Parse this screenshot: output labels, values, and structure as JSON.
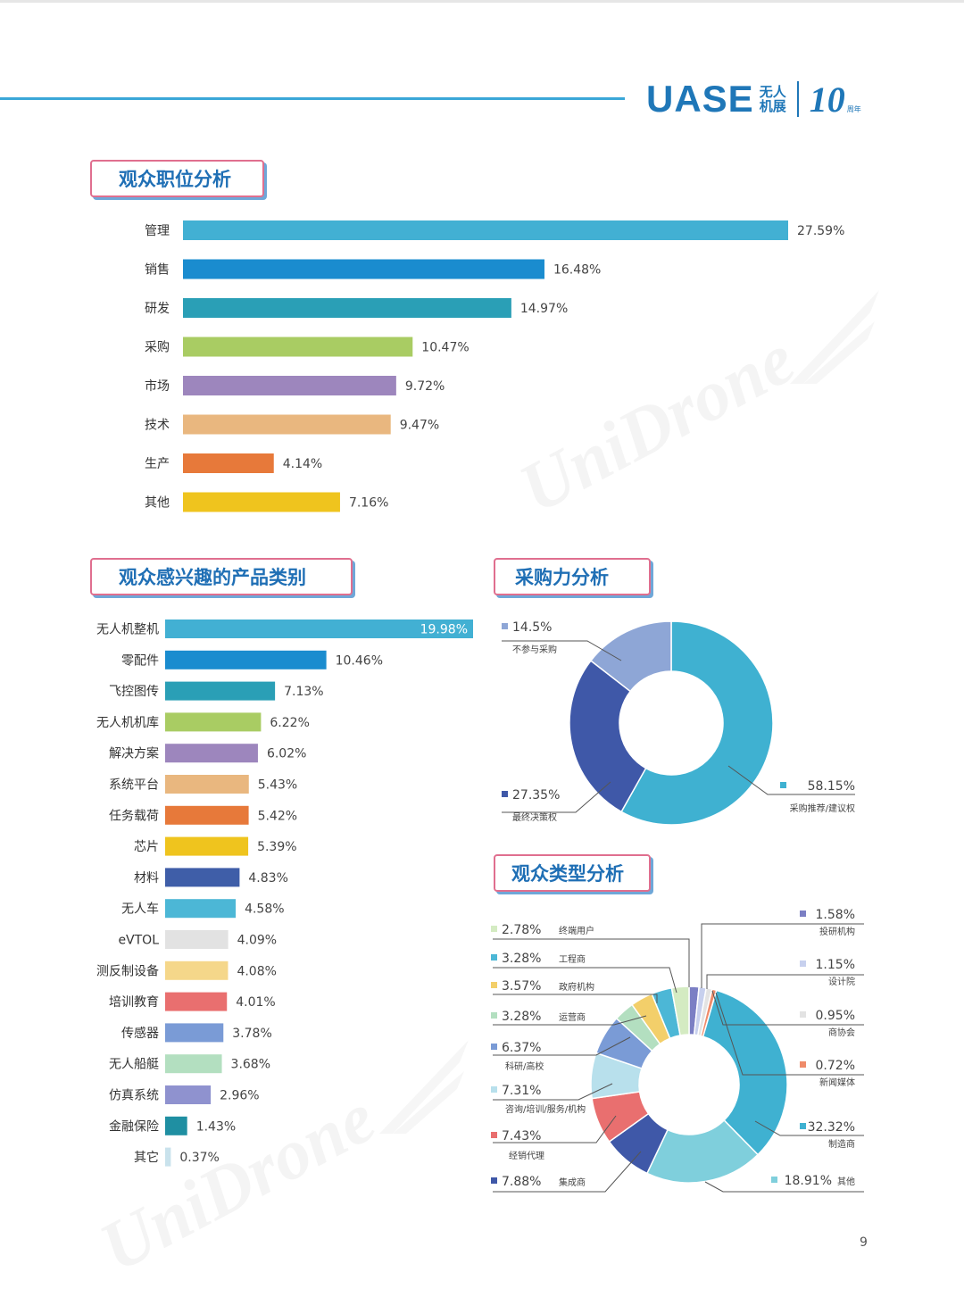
{
  "header": {
    "logo_text": "UASE",
    "logo_cn_top": "无人",
    "logo_cn_bottom": "机展",
    "anniversary": "10",
    "anniversary_small": "周年"
  },
  "sections": {
    "position": "观众职位分析",
    "product": "观众感兴趣的产品类别",
    "purchase": "采购力分析",
    "visitor_type": "观众类型分析"
  },
  "watermark": "UniDrone",
  "page_number": "9",
  "chart_data": [
    {
      "id": "position",
      "type": "bar",
      "orientation": "horizontal",
      "categories": [
        "管理",
        "销售",
        "研发",
        "采购",
        "市场",
        "技术",
        "生产",
        "其他"
      ],
      "values": [
        27.59,
        16.48,
        14.97,
        10.47,
        9.72,
        9.47,
        4.14,
        7.16
      ],
      "value_labels": [
        "27.59%",
        "16.48%",
        "14.97%",
        "10.47%",
        "9.72%",
        "9.47%",
        "4.14%",
        "7.16%"
      ],
      "colors": [
        "#42b0d3",
        "#1a8ccf",
        "#2a9fb6",
        "#a9cc63",
        "#9d86bd",
        "#e9b77f",
        "#e7793a",
        "#efc41e"
      ],
      "xlim": [
        0,
        27.59
      ]
    },
    {
      "id": "product",
      "type": "bar",
      "orientation": "horizontal",
      "categories": [
        "无人机整机",
        "零配件",
        "飞控图传",
        "无人机机库",
        "解决方案",
        "系统平台",
        "任务载荷",
        "芯片",
        "材料",
        "无人车",
        "eVTOL",
        "测反制设备",
        "培训教育",
        "传感器",
        "无人船艇",
        "仿真系统",
        "金融保险",
        "其它"
      ],
      "values": [
        19.98,
        10.46,
        7.13,
        6.22,
        6.02,
        5.43,
        5.42,
        5.39,
        4.83,
        4.58,
        4.09,
        4.08,
        4.01,
        3.78,
        3.68,
        2.96,
        1.43,
        0.37
      ],
      "value_labels": [
        "19.98%",
        "10.46%",
        "7.13%",
        "6.22%",
        "6.02%",
        "5.43%",
        "5.42%",
        "5.39%",
        "4.83%",
        "4.58%",
        "4.09%",
        "4.08%",
        "4.01%",
        "3.78%",
        "3.68%",
        "2.96%",
        "1.43%",
        "0.37%"
      ],
      "colors": [
        "#42b0d3",
        "#1a8ccf",
        "#2a9fb6",
        "#a9cc63",
        "#9d86bd",
        "#e9b77f",
        "#e7793a",
        "#efc41e",
        "#3f5ea8",
        "#4cb7d6",
        "#e2e2e2",
        "#f5d78a",
        "#e96f6f",
        "#7a9bd6",
        "#b3dfc0",
        "#8f92cf",
        "#1f8fa2",
        "#c9e2ec"
      ],
      "xlim": [
        0,
        19.98
      ]
    },
    {
      "id": "purchase",
      "type": "pie",
      "donut": true,
      "slices": [
        {
          "label": "采购推荐/建议权",
          "value": 58.15,
          "value_label": "58.15%",
          "color": "#3fb1d1"
        },
        {
          "label": "最终决策权",
          "value": 27.35,
          "value_label": "27.35%",
          "color": "#3f58a8"
        },
        {
          "label": "不参与采购",
          "value": 14.5,
          "value_label": "14.5%",
          "color": "#8ea6d6"
        }
      ]
    },
    {
      "id": "visitor_type",
      "type": "pie",
      "donut": true,
      "slices": [
        {
          "label": "投研机构",
          "value": 1.58,
          "value_label": "1.58%",
          "color": "#7b7fc4"
        },
        {
          "label": "设计院",
          "value": 1.15,
          "value_label": "1.15%",
          "color": "#c7d0ee"
        },
        {
          "label": "商协会",
          "value": 0.95,
          "value_label": "0.95%",
          "color": "#e3e3e3"
        },
        {
          "label": "新闻媒体",
          "value": 0.72,
          "value_label": "0.72%",
          "color": "#ef8b6a"
        },
        {
          "label": "制造商",
          "value": 32.32,
          "value_label": "32.32%",
          "color": "#3fb1d1"
        },
        {
          "label": "其他",
          "value": 18.91,
          "value_label": "18.91%",
          "color": "#7fcfdc"
        },
        {
          "label": "集成商",
          "value": 7.88,
          "value_label": "7.88%",
          "color": "#3f58a8"
        },
        {
          "label": "经销代理",
          "value": 7.43,
          "value_label": "7.43%",
          "color": "#e96f6f"
        },
        {
          "label": "咨询/培训/服务/机构",
          "value": 7.31,
          "value_label": "7.31%",
          "color": "#b8e0ec"
        },
        {
          "label": "科研/高校",
          "value": 6.37,
          "value_label": "6.37%",
          "color": "#7a9bd6"
        },
        {
          "label": "运营商",
          "value": 3.28,
          "value_label": "3.28%",
          "color": "#b3dfc0"
        },
        {
          "label": "政府机构",
          "value": 3.57,
          "value_label": "3.57%",
          "color": "#f3cf6a"
        },
        {
          "label": "工程商",
          "value": 3.28,
          "value_label": "3.28%",
          "color": "#4cb7d6"
        },
        {
          "label": "终端用户",
          "value": 2.78,
          "value_label": "2.78%",
          "color": "#d4ebc2"
        }
      ]
    }
  ]
}
